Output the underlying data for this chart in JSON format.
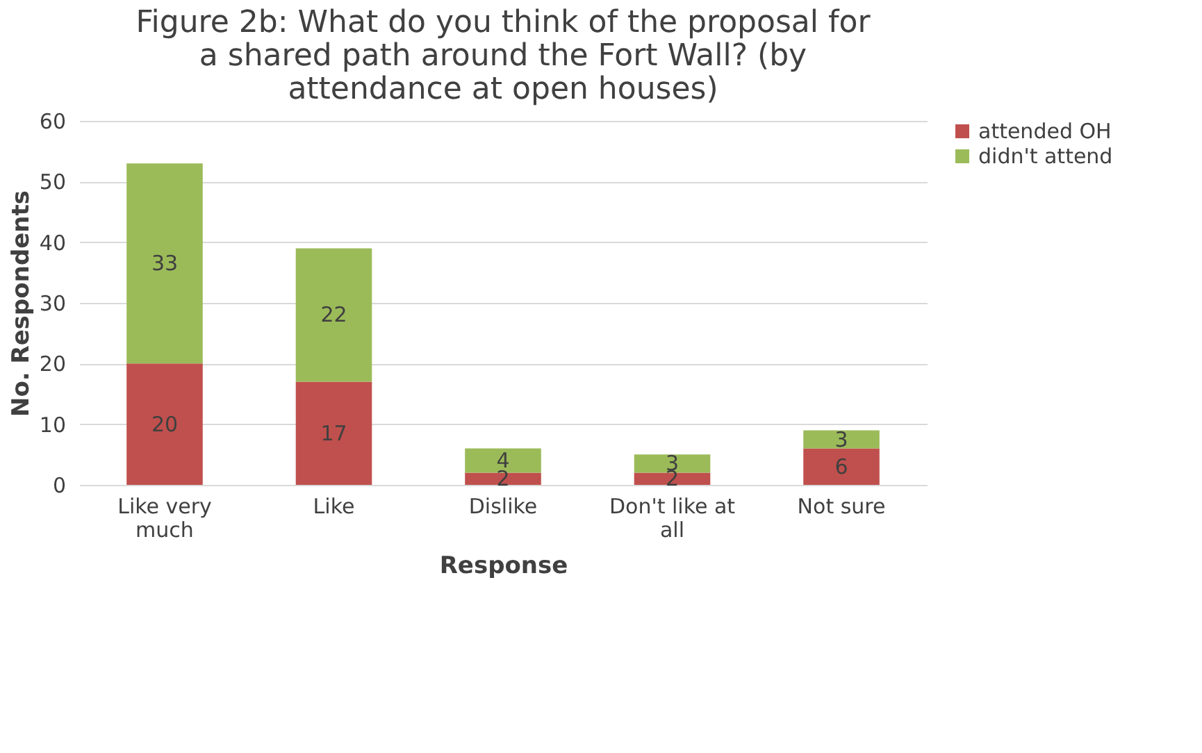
{
  "chart_data": {
    "type": "bar",
    "title": "Figure 2b: What do you think of the proposal for a shared path around the Fort Wall? (by attendance at open houses)",
    "xlabel": "Response",
    "ylabel": "No. Respondents",
    "categories": [
      "Like very much",
      "Like",
      "Dislike",
      "Don't like at all",
      "Not sure"
    ],
    "series": [
      {
        "name": "attended OH",
        "color": "#c0504d",
        "values": [
          20,
          17,
          2,
          2,
          6
        ]
      },
      {
        "name": "didn't attend",
        "color": "#9bbb59",
        "values": [
          33,
          22,
          4,
          3,
          3
        ]
      }
    ],
    "stacked": true,
    "data_labels": true,
    "ylim": [
      0,
      60
    ],
    "yticks": [
      0,
      10,
      20,
      30,
      40,
      50,
      60
    ],
    "grid": "y",
    "legend": "right"
  }
}
